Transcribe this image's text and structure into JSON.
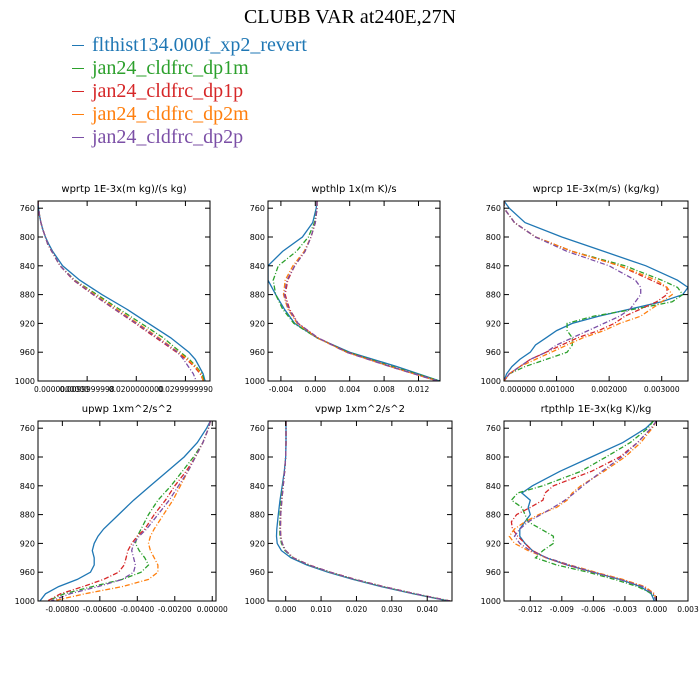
{
  "title": "CLUBB VAR at240E,27N",
  "legend": [
    {
      "name": "flthist134.000f_xp2_revert",
      "color": "#1f77b4",
      "dash": "solid"
    },
    {
      "name": "jan24_cldfrc_dp1m",
      "color": "#2ca02c",
      "dash": "dashdot"
    },
    {
      "name": "jan24_cldfrc_dp1p",
      "color": "#d62728",
      "dash": "dashdot"
    },
    {
      "name": "jan24_cldfrc_dp2m",
      "color": "#ff7f0e",
      "dash": "dashdot"
    },
    {
      "name": "jan24_cldfrc_dp2p",
      "color": "#7b4fa6",
      "dash": "dashdot"
    }
  ],
  "chart_data": [
    {
      "type": "line",
      "title": "wprtp  1E-3x(m kg)/(s kg)",
      "xlim": [
        0.0,
        0.035
      ],
      "ylim": [
        1000,
        750
      ],
      "xticks": [
        "0.0000000000",
        "0.0099999998",
        "0.0200000000",
        "0.0299999990"
      ],
      "xtickvals": [
        0.0,
        0.01,
        0.02,
        0.03
      ],
      "yticks": [
        760,
        800,
        840,
        880,
        920,
        960,
        1000
      ],
      "y": [
        750,
        760,
        770,
        780,
        790,
        800,
        810,
        820,
        840,
        860,
        880,
        900,
        920,
        940,
        960,
        970,
        980,
        990,
        1000
      ],
      "series": [
        {
          "values": [
            0.0,
            0.0001,
            0.0003,
            0.0006,
            0.001,
            0.0015,
            0.0022,
            0.003,
            0.005,
            0.0085,
            0.013,
            0.018,
            0.0225,
            0.027,
            0.0307,
            0.032,
            0.0328,
            0.0336,
            0.034
          ]
        },
        {
          "values": [
            0.0,
            0.0001,
            0.0003,
            0.0006,
            0.001,
            0.0015,
            0.002,
            0.0028,
            0.0045,
            0.0075,
            0.012,
            0.0165,
            0.021,
            0.0255,
            0.029,
            0.0308,
            0.0322,
            0.0334,
            0.0338
          ]
        },
        {
          "values": [
            0.0,
            0.0001,
            0.0003,
            0.0006,
            0.001,
            0.0015,
            0.002,
            0.0028,
            0.0045,
            0.0072,
            0.0112,
            0.0155,
            0.0198,
            0.024,
            0.0282,
            0.0302,
            0.0318,
            0.033,
            0.0337
          ]
        },
        {
          "values": [
            0.0,
            0.0001,
            0.0003,
            0.0006,
            0.001,
            0.0015,
            0.002,
            0.0028,
            0.0045,
            0.0074,
            0.0116,
            0.016,
            0.0203,
            0.0246,
            0.0286,
            0.0305,
            0.032,
            0.0332,
            0.0336
          ]
        },
        {
          "values": [
            0.0,
            0.0001,
            0.0003,
            0.0006,
            0.001,
            0.0015,
            0.002,
            0.0028,
            0.0045,
            0.0073,
            0.0113,
            0.0156,
            0.02,
            0.0243,
            0.0284,
            0.0296,
            0.0306,
            0.0316,
            0.0322
          ]
        }
      ]
    },
    {
      "type": "line",
      "title": "wpthlp  1x(m K)/s",
      "xlim": [
        -0.0055,
        0.0145
      ],
      "ylim": [
        1000,
        750
      ],
      "xticks": [
        "-0.004",
        "0.000",
        "0.004",
        "0.008",
        "0.012"
      ],
      "xtickvals": [
        -0.004,
        0.0,
        0.004,
        0.008,
        0.012
      ],
      "yticks": [
        760,
        800,
        840,
        880,
        920,
        960,
        1000
      ],
      "y": [
        750,
        760,
        780,
        800,
        820,
        840,
        860,
        880,
        900,
        920,
        940,
        960,
        980,
        1000
      ],
      "series": [
        {
          "values": [
            0.0002,
            0.0001,
            -0.0003,
            -0.0015,
            -0.0038,
            -0.0055,
            -0.0055,
            -0.0046,
            -0.0036,
            -0.0024,
            0.0002,
            0.004,
            0.0095,
            0.0145
          ]
        },
        {
          "values": [
            0.0002,
            0.0002,
            -0.0001,
            -0.0008,
            -0.0022,
            -0.0043,
            -0.0049,
            -0.0046,
            -0.0038,
            -0.0025,
            0.0002,
            0.0038,
            0.009,
            0.0145
          ]
        },
        {
          "values": [
            0.0002,
            0.0002,
            0.0,
            -0.0005,
            -0.0012,
            -0.0024,
            -0.0032,
            -0.0035,
            -0.003,
            -0.002,
            0.0003,
            0.0037,
            0.0088,
            0.0142
          ]
        },
        {
          "values": [
            0.0002,
            0.0002,
            0.0,
            -0.0005,
            -0.0013,
            -0.0026,
            -0.0035,
            -0.0037,
            -0.0032,
            -0.0021,
            0.0002,
            0.0036,
            0.0087,
            0.0142
          ]
        },
        {
          "values": [
            0.0002,
            0.0002,
            0.0,
            -0.0005,
            -0.0012,
            -0.0024,
            -0.0033,
            -0.0036,
            -0.0031,
            -0.002,
            0.0003,
            0.0036,
            0.0087,
            0.0142
          ]
        }
      ]
    },
    {
      "type": "line",
      "title": "wprcp  1E-3x(m/s) (kg/kg)",
      "xlim": [
        0.0,
        0.0035
      ],
      "ylim": [
        1000,
        750
      ],
      "xticks": [
        "0.000000",
        "0.001000",
        "0.002000",
        "0.003000"
      ],
      "xtickvals": [
        0.0,
        0.001,
        0.002,
        0.003
      ],
      "yticks": [
        760,
        800,
        840,
        880,
        920,
        960,
        1000
      ],
      "y": [
        750,
        760,
        780,
        800,
        820,
        840,
        860,
        870,
        880,
        890,
        900,
        910,
        920,
        930,
        940,
        950,
        960,
        970,
        980,
        990,
        1000
      ],
      "series": [
        {
          "values": [
            0.0,
            0.0001,
            0.0004,
            0.0011,
            0.0019,
            0.0027,
            0.0033,
            0.0035,
            0.0034,
            0.003,
            0.0024,
            0.0018,
            0.0013,
            0.001,
            0.0008,
            0.0006,
            0.0005,
            0.0003,
            0.00015,
            5e-05,
            0.0
          ]
        },
        {
          "values": [
            0.0,
            0.0,
            0.0002,
            0.0006,
            0.0013,
            0.0023,
            0.003,
            0.0033,
            0.0034,
            0.0032,
            0.0025,
            0.0017,
            0.0012,
            0.0012,
            0.0013,
            0.0013,
            0.0012,
            0.0008,
            0.0004,
            0.0001,
            0.0
          ]
        },
        {
          "values": [
            0.0,
            0.0,
            0.0002,
            0.0006,
            0.0013,
            0.0022,
            0.0028,
            0.0031,
            0.0031,
            0.0029,
            0.0026,
            0.0023,
            0.0021,
            0.0018,
            0.0014,
            0.0011,
            0.0008,
            0.0005,
            0.0003,
            0.0001,
            0.0
          ]
        },
        {
          "values": [
            0.0,
            0.0,
            0.0002,
            0.0006,
            0.0013,
            0.0022,
            0.0029,
            0.0031,
            0.0032,
            0.003,
            0.0028,
            0.0026,
            0.0022,
            0.0019,
            0.0015,
            0.0012,
            0.0009,
            0.0006,
            0.0003,
            0.0001,
            0.0
          ]
        },
        {
          "values": [
            0.0,
            0.0,
            0.0002,
            0.0006,
            0.0012,
            0.002,
            0.0025,
            0.0026,
            0.0026,
            0.0025,
            0.0024,
            0.0022,
            0.0019,
            0.0016,
            0.0013,
            0.001,
            0.0008,
            0.0005,
            0.0003,
            0.0001,
            0.0
          ]
        }
      ]
    },
    {
      "type": "line",
      "title": "upwp  1xm^2/s^2",
      "xlim": [
        -0.0093,
        0.0002
      ],
      "ylim": [
        1000,
        750
      ],
      "xticks": [
        "-0.00800",
        "-0.00600",
        "-0.00400",
        "-0.00200",
        "0.00000"
      ],
      "xtickvals": [
        -0.008,
        -0.006,
        -0.004,
        -0.002,
        0.0
      ],
      "yticks": [
        760,
        800,
        840,
        880,
        920,
        960,
        1000
      ],
      "y": [
        750,
        760,
        780,
        800,
        820,
        840,
        860,
        880,
        900,
        910,
        920,
        930,
        940,
        950,
        960,
        970,
        980,
        990,
        1000
      ],
      "series": [
        {
          "values": [
            -0.0001,
            -0.0003,
            -0.0008,
            -0.0015,
            -0.0024,
            -0.0033,
            -0.0042,
            -0.005,
            -0.0058,
            -0.0061,
            -0.0063,
            -0.0064,
            -0.0063,
            -0.0063,
            -0.0065,
            -0.0072,
            -0.0082,
            -0.0089,
            -0.0092
          ]
        },
        {
          "values": [
            -0.0001,
            -0.0002,
            -0.0005,
            -0.001,
            -0.0016,
            -0.0022,
            -0.0029,
            -0.0034,
            -0.0038,
            -0.004,
            -0.0041,
            -0.0039,
            -0.0036,
            -0.0034,
            -0.0038,
            -0.0048,
            -0.0064,
            -0.0079,
            -0.0088
          ]
        },
        {
          "values": [
            -0.0001,
            -0.0002,
            -0.0005,
            -0.0009,
            -0.0014,
            -0.002,
            -0.0025,
            -0.0031,
            -0.0036,
            -0.004,
            -0.0043,
            -0.0045,
            -0.0046,
            -0.0047,
            -0.005,
            -0.0058,
            -0.0069,
            -0.0081,
            -0.0088
          ]
        },
        {
          "values": [
            -0.0001,
            -0.0002,
            -0.0005,
            -0.0009,
            -0.0013,
            -0.0017,
            -0.0021,
            -0.0026,
            -0.0031,
            -0.0033,
            -0.0034,
            -0.0033,
            -0.0031,
            -0.0029,
            -0.0029,
            -0.0034,
            -0.0048,
            -0.0068,
            -0.0085
          ]
        },
        {
          "values": [
            -0.0001,
            -0.0002,
            -0.0005,
            -0.0009,
            -0.0013,
            -0.0018,
            -0.0023,
            -0.0029,
            -0.0035,
            -0.0039,
            -0.0042,
            -0.0043,
            -0.0042,
            -0.0041,
            -0.0042,
            -0.0048,
            -0.0061,
            -0.0076,
            -0.0086
          ]
        }
      ]
    },
    {
      "type": "line",
      "title": "vpwp  1xm^2/s^2",
      "xlim": [
        -0.005,
        0.047
      ],
      "ylim": [
        1000,
        750
      ],
      "xticks": [
        "0.000",
        "0.010",
        "0.020",
        "0.030",
        "0.040"
      ],
      "xtickvals": [
        0.0,
        0.01,
        0.02,
        0.03,
        0.04
      ],
      "yticks": [
        760,
        800,
        840,
        880,
        920,
        960,
        1000
      ],
      "y": [
        750,
        760,
        780,
        800,
        820,
        840,
        860,
        880,
        900,
        910,
        920,
        930,
        940,
        950,
        960,
        970,
        980,
        990,
        1000
      ],
      "series": [
        {
          "values": [
            0.0001,
            0.0001,
            0.0001,
            0.0,
            -0.0004,
            -0.001,
            -0.0016,
            -0.0021,
            -0.0025,
            -0.0026,
            -0.0024,
            -0.0012,
            0.0015,
            0.006,
            0.012,
            0.019,
            0.027,
            0.036,
            0.046
          ]
        },
        {
          "values": [
            0.0001,
            0.0001,
            0.0001,
            0.0,
            -0.0003,
            -0.0008,
            -0.0013,
            -0.0016,
            -0.0017,
            -0.0016,
            -0.0012,
            -0.0002,
            0.002,
            0.0065,
            0.0125,
            0.0195,
            0.0275,
            0.0365,
            0.0465
          ]
        },
        {
          "values": [
            0.0001,
            0.0001,
            0.0001,
            0.0,
            -0.0003,
            -0.0007,
            -0.0011,
            -0.0014,
            -0.0015,
            -0.0014,
            -0.001,
            0.0,
            0.0022,
            0.0067,
            0.0127,
            0.0197,
            0.0277,
            0.0366,
            0.0465
          ]
        },
        {
          "values": [
            0.0001,
            0.0001,
            0.0001,
            0.0,
            -0.0003,
            -0.0007,
            -0.0011,
            -0.0014,
            -0.0015,
            -0.0014,
            -0.001,
            0.0,
            0.0022,
            0.0066,
            0.0126,
            0.0196,
            0.0276,
            0.0366,
            0.0465
          ]
        },
        {
          "values": [
            0.0001,
            0.0001,
            0.0001,
            0.0,
            -0.0003,
            -0.0007,
            -0.0011,
            -0.0014,
            -0.0015,
            -0.0014,
            -0.001,
            0.0,
            0.0021,
            0.0066,
            0.0126,
            0.0196,
            0.0276,
            0.0366,
            0.0465
          ]
        }
      ]
    },
    {
      "type": "line",
      "title": "rtpthlp  1E-3x(kg K)/kg",
      "xlim": [
        -0.0145,
        0.003
      ],
      "ylim": [
        1000,
        750
      ],
      "xticks": [
        "-0.012",
        "-0.009",
        "-0.006",
        "-0.003",
        "0.000",
        "0.003"
      ],
      "xtickvals": [
        -0.012,
        -0.009,
        -0.006,
        -0.003,
        0.0,
        0.003
      ],
      "yticks": [
        760,
        800,
        840,
        880,
        920,
        960,
        1000
      ],
      "y": [
        750,
        760,
        780,
        800,
        820,
        840,
        850,
        860,
        870,
        880,
        890,
        900,
        910,
        920,
        930,
        940,
        950,
        960,
        970,
        980,
        990,
        1000
      ],
      "series": [
        {
          "values": [
            -0.0003,
            -0.001,
            -0.0032,
            -0.0062,
            -0.0092,
            -0.0118,
            -0.0128,
            -0.012,
            -0.0122,
            -0.012,
            -0.0125,
            -0.013,
            -0.013,
            -0.0125,
            -0.0118,
            -0.0105,
            -0.0085,
            -0.006,
            -0.0035,
            -0.0015,
            -0.0005,
            -0.0002
          ]
        },
        {
          "values": [
            -0.0003,
            -0.0008,
            -0.0025,
            -0.0048,
            -0.0072,
            -0.0108,
            -0.0132,
            -0.0138,
            -0.0128,
            -0.0125,
            -0.0122,
            -0.011,
            -0.0098,
            -0.0098,
            -0.0108,
            -0.0115,
            -0.0095,
            -0.0065,
            -0.004,
            -0.0018,
            -0.0004,
            0.0
          ]
        },
        {
          "values": [
            0.0,
            -0.0005,
            -0.0018,
            -0.0035,
            -0.0062,
            -0.0098,
            -0.0106,
            -0.0108,
            -0.012,
            -0.0133,
            -0.0138,
            -0.0137,
            -0.0132,
            -0.0125,
            -0.0118,
            -0.0105,
            -0.0085,
            -0.006,
            -0.0033,
            -0.0012,
            -0.0002,
            0.0
          ]
        },
        {
          "values": [
            0.0,
            -0.0004,
            -0.0015,
            -0.003,
            -0.005,
            -0.0072,
            -0.008,
            -0.0085,
            -0.0095,
            -0.0112,
            -0.0125,
            -0.0135,
            -0.014,
            -0.0135,
            -0.0122,
            -0.0105,
            -0.0082,
            -0.0058,
            -0.0032,
            -0.0011,
            -0.0002,
            0.0
          ]
        },
        {
          "values": [
            0.0,
            -0.0005,
            -0.0018,
            -0.0033,
            -0.0052,
            -0.007,
            -0.0078,
            -0.0087,
            -0.0098,
            -0.011,
            -0.0122,
            -0.013,
            -0.0135,
            -0.013,
            -0.012,
            -0.0104,
            -0.0083,
            -0.006,
            -0.0035,
            -0.0013,
            -0.0003,
            0.0
          ]
        }
      ]
    }
  ]
}
